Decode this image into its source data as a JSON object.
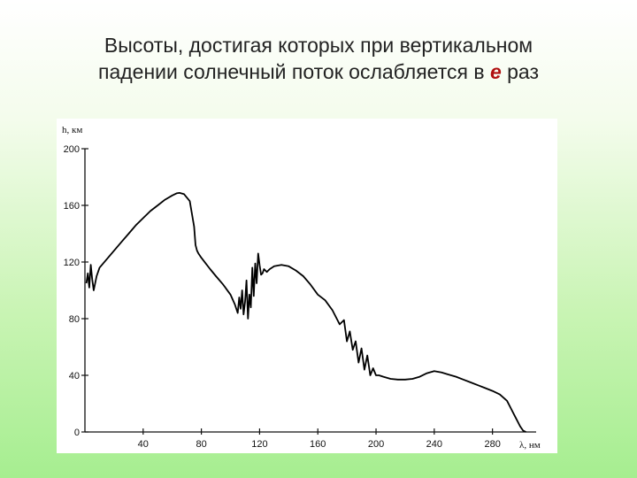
{
  "slide": {
    "title_line1": "Высоты, достигая которых при вертикальном",
    "title_line2_before": "падении солнечный поток ослабляется в ",
    "title_e": "e",
    "title_line2_after": " раз"
  },
  "colors": {
    "title_text": "#222222",
    "e_letter": "#b01010",
    "curve": "#000000"
  },
  "chart_data": {
    "type": "line",
    "title": "Высоты, достигая которых при вертикальном падении солнечный поток ослабляется в e раз",
    "xlabel": "λ, нм",
    "ylabel": "h, км",
    "xlim": [
      0,
      310
    ],
    "ylim": [
      0,
      200
    ],
    "x_ticks": [
      40,
      80,
      120,
      160,
      200,
      240,
      280
    ],
    "y_ticks": [
      0,
      40,
      80,
      120,
      160,
      200
    ],
    "grid": false,
    "series": [
      {
        "x": [
          1,
          2,
          3,
          4,
          5,
          6,
          8,
          10,
          15,
          20,
          25,
          30,
          35,
          40,
          45,
          50,
          55,
          60,
          63,
          65,
          68,
          72,
          75,
          76,
          77,
          78,
          80,
          83,
          86,
          90,
          95,
          100,
          103,
          105,
          106,
          107,
          108,
          109,
          110,
          111,
          112,
          113,
          114,
          115,
          116,
          117,
          118,
          119,
          120,
          121,
          122,
          123,
          124,
          125,
          127,
          130,
          135,
          140,
          145,
          150,
          155,
          160,
          165,
          170,
          175,
          178,
          180,
          182,
          184,
          186,
          188,
          190,
          192,
          194,
          196,
          198,
          200,
          202,
          205,
          210,
          215,
          220,
          225,
          230,
          235,
          240,
          245,
          250,
          255,
          260,
          265,
          270,
          275,
          280,
          285,
          290,
          293,
          295,
          297,
          299,
          301,
          303
        ],
        "values": [
          105,
          112,
          102,
          118,
          108,
          100,
          110,
          116,
          122,
          128,
          134,
          140,
          146,
          151,
          156,
          160,
          164,
          167,
          168.5,
          168.8,
          168,
          163,
          145,
          132,
          128,
          126,
          123,
          119,
          115,
          110,
          104,
          97,
          90,
          84,
          95,
          87,
          100,
          83,
          92,
          107,
          80,
          97,
          88,
          116,
          96,
          119,
          105,
          126,
          118,
          111,
          112,
          115,
          114,
          113,
          115,
          117,
          118,
          117,
          114,
          110,
          104,
          97,
          93,
          86,
          76,
          79,
          64,
          71,
          58,
          64,
          49,
          59,
          44,
          54,
          40,
          45,
          40,
          40,
          39,
          37.5,
          37,
          37,
          37.5,
          39,
          41.5,
          43,
          42,
          40.5,
          39,
          37,
          35,
          33,
          31,
          29,
          26.5,
          22,
          16,
          12,
          8,
          4,
          1,
          0
        ]
      }
    ]
  }
}
